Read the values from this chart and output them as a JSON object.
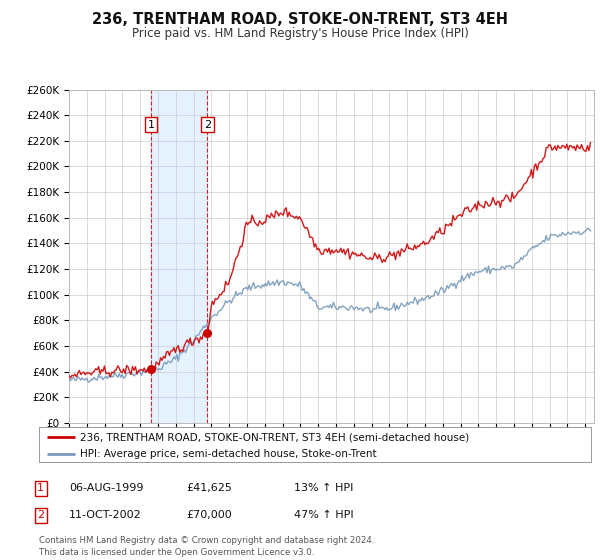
{
  "title": "236, TRENTHAM ROAD, STOKE-ON-TRENT, ST3 4EH",
  "subtitle": "Price paid vs. HM Land Registry's House Price Index (HPI)",
  "legend_line1": "236, TRENTHAM ROAD, STOKE-ON-TRENT, ST3 4EH (semi-detached house)",
  "legend_line2": "HPI: Average price, semi-detached house, Stoke-on-Trent",
  "red_line_color": "#cc0000",
  "blue_line_color": "#7799bb",
  "transaction1_date": "06-AUG-1999",
  "transaction1_price": "£41,625",
  "transaction1_hpi": "13% ↑ HPI",
  "transaction1_year": 1999.6,
  "transaction1_value": 41625,
  "transaction2_date": "11-OCT-2002",
  "transaction2_price": "£70,000",
  "transaction2_hpi": "47% ↑ HPI",
  "transaction2_year": 2002.78,
  "transaction2_value": 70000,
  "shaded_region_start": 1999.6,
  "shaded_region_end": 2002.78,
  "footer": "Contains HM Land Registry data © Crown copyright and database right 2024.\nThis data is licensed under the Open Government Licence v3.0.",
  "ylim": [
    0,
    260000
  ],
  "xlim_start": 1995.0,
  "xlim_end": 2024.5,
  "background_color": "#ffffff",
  "grid_color": "#cccccc",
  "hpi_anchors_x": [
    1995,
    1996,
    1997,
    1998,
    1999,
    2000,
    2001,
    2002,
    2003,
    2004,
    2005,
    2006,
    2007,
    2008,
    2009,
    2010,
    2011,
    2012,
    2013,
    2014,
    2015,
    2016,
    2017,
    2018,
    2019,
    2020,
    2021,
    2022,
    2023,
    2024.3
  ],
  "hpi_anchors_y": [
    33000,
    34500,
    36000,
    37500,
    39500,
    42000,
    50000,
    64000,
    82000,
    95000,
    105000,
    108000,
    110000,
    107000,
    90000,
    90000,
    90000,
    88000,
    89000,
    93000,
    97000,
    103000,
    112000,
    118000,
    120000,
    122000,
    135000,
    145000,
    148000,
    150000
  ],
  "red_anchors_x": [
    1995,
    1996,
    1997,
    1998,
    1999.6,
    2000,
    2001,
    2002.78,
    2003,
    2004,
    2005,
    2006,
    2007,
    2008,
    2009,
    2010,
    2011,
    2012,
    2013,
    2014,
    2015,
    2016,
    2017,
    2018,
    2019,
    2020,
    2021,
    2022,
    2023,
    2024.3
  ],
  "red_anchors_y": [
    36800,
    38500,
    40000,
    41000,
    41625,
    46000,
    57000,
    70000,
    92000,
    110000,
    155000,
    158000,
    165000,
    160000,
    135000,
    135000,
    132000,
    128000,
    130000,
    135000,
    140000,
    150000,
    162000,
    170000,
    173000,
    175000,
    195000,
    215000,
    215000,
    215000
  ],
  "noise_seed": 42,
  "noise_hpi": 1500,
  "noise_red": 2000,
  "n_points": 354
}
